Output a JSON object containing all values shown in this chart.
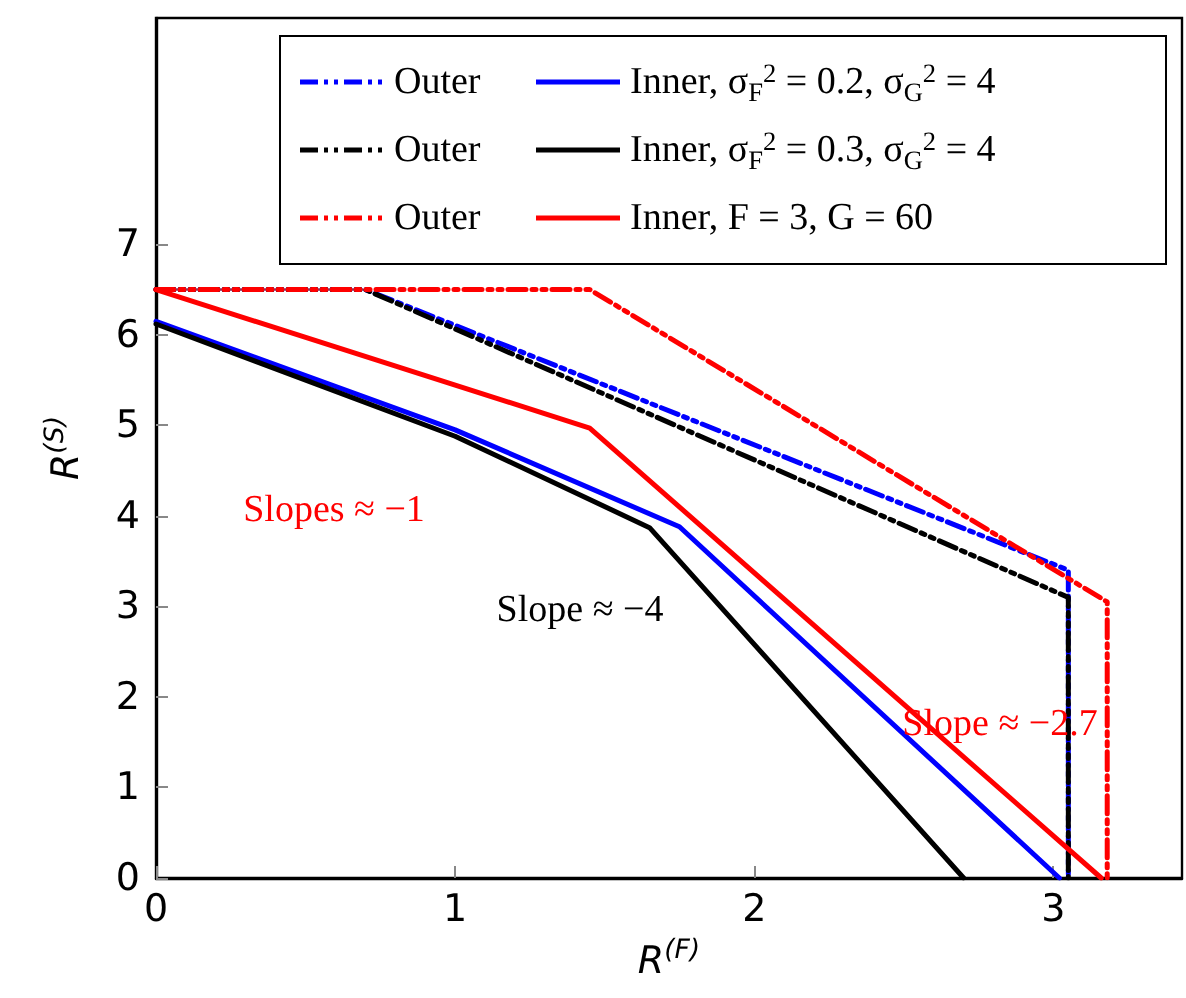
{
  "chart_data": {
    "type": "line",
    "xlabel": "R$^{(F)}$",
    "ylabel": "R$^{(S)}$",
    "xlim": [
      0,
      3.43
    ],
    "ylim": [
      0,
      9.5
    ],
    "xticks": [
      0,
      1,
      2,
      3
    ],
    "yticks": [
      0,
      1,
      2,
      3,
      4,
      5,
      6,
      7
    ],
    "grid": false,
    "legend": "top right",
    "series": [
      {
        "name": "Outer",
        "color": "#0000ff",
        "line_style": "dashed",
        "x": [
          0,
          0.7,
          3.05,
          3.05
        ],
        "values": [
          6.5,
          6.5,
          3.4,
          0
        ]
      },
      {
        "name": "Inner, σ$_{F}$$^{2}$ = 0.2, σ$_{G}$$^{2}$ = 4",
        "color": "#0000ff",
        "line_style": "solid",
        "x": [
          0,
          1,
          1.75,
          3.02
        ],
        "values": [
          6.15,
          4.95,
          3.88,
          0
        ]
      },
      {
        "name": "Outer",
        "color": "#000000",
        "line_style": "dashed",
        "x": [
          0,
          0.7,
          3.05,
          3.05
        ],
        "values": [
          6.5,
          6.5,
          3.1,
          0
        ]
      },
      {
        "name": "Inner, σ$_{F}$$^{2}$ = 0.3, σ$_{G}$$^{2}$ = 4",
        "color": "#000000",
        "line_style": "solid",
        "x": [
          0,
          1,
          1.65,
          2.7
        ],
        "values": [
          6.12,
          4.88,
          3.87,
          0
        ]
      },
      {
        "name": "Outer",
        "color": "#ff0000",
        "line_style": "dashed",
        "x": [
          0,
          1.45,
          3.18,
          3.18
        ],
        "values": [
          6.5,
          6.5,
          3.05,
          0
        ]
      },
      {
        "name": "Inner, F = 3, G = 60",
        "color": "#ff0000",
        "line_style": "solid",
        "x": [
          0,
          1.45,
          3.16
        ],
        "values": [
          6.5,
          4.97,
          0
        ]
      }
    ],
    "annotations": [
      "Slopes ≈ −1",
      "Slope ≈ −4",
      "Slope ≈ −2.7"
    ]
  }
}
